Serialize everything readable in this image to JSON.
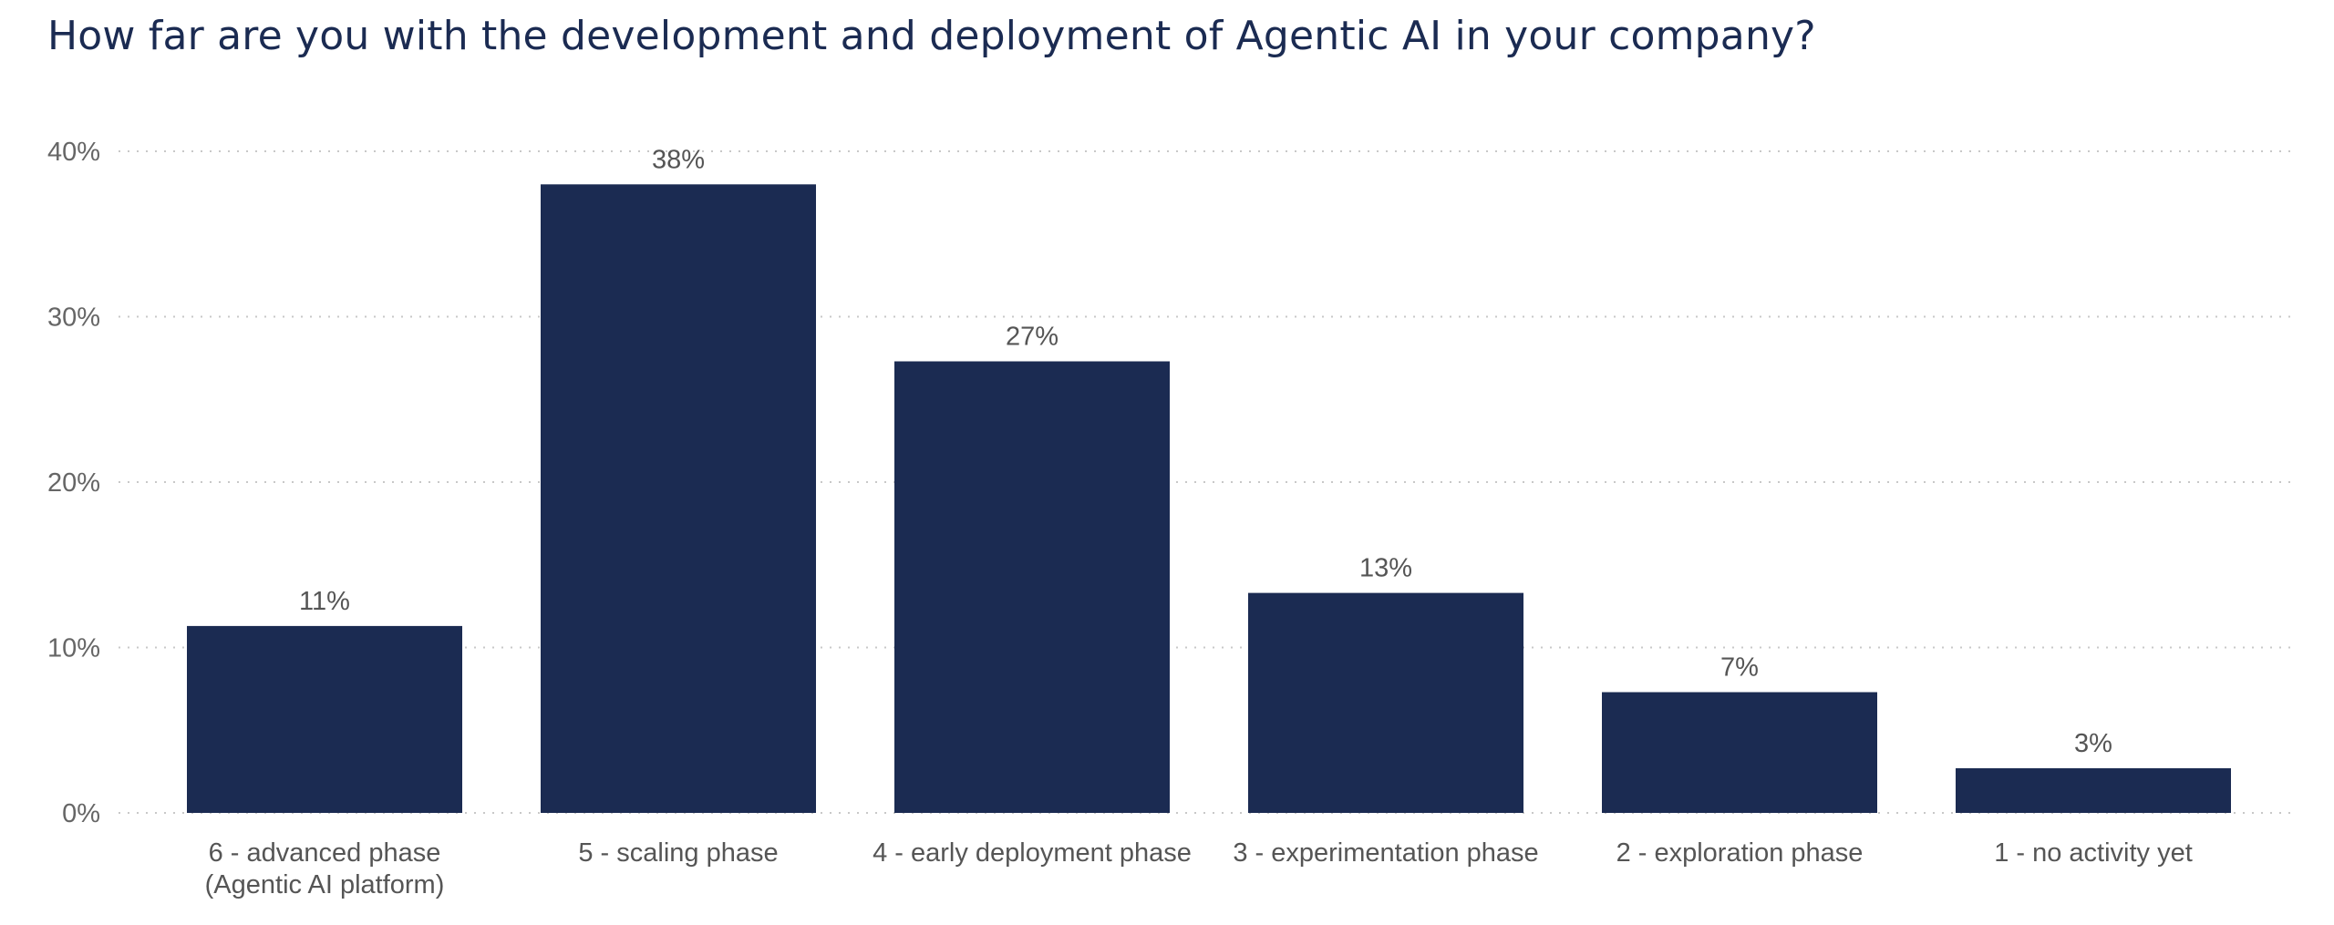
{
  "title": "How far are you with the development and deployment of Agentic AI in your company?",
  "chart_data": {
    "type": "bar",
    "title": "How far are you with the development and deployment of Agentic AI in your company?",
    "categories": [
      "6 - advanced phase\n(Agentic AI platform)",
      "5 - scaling phase",
      "4 - early deployment phase",
      "3 - experimentation phase",
      "2 - exploration phase",
      "1 - no activity yet"
    ],
    "values": [
      11.3,
      38.0,
      27.3,
      13.3,
      7.3,
      2.7
    ],
    "value_labels": [
      "11%",
      "38%",
      "27%",
      "13%",
      "7%",
      "3%"
    ],
    "yticks": [
      0,
      10,
      20,
      30,
      40
    ],
    "ytick_labels": [
      "0%",
      "10%",
      "20%",
      "30%",
      "40%"
    ],
    "ylim": [
      0,
      40
    ],
    "xlabel": "",
    "ylabel": "",
    "grid": true,
    "legend": "none",
    "bar_color": "#1b2b52"
  }
}
